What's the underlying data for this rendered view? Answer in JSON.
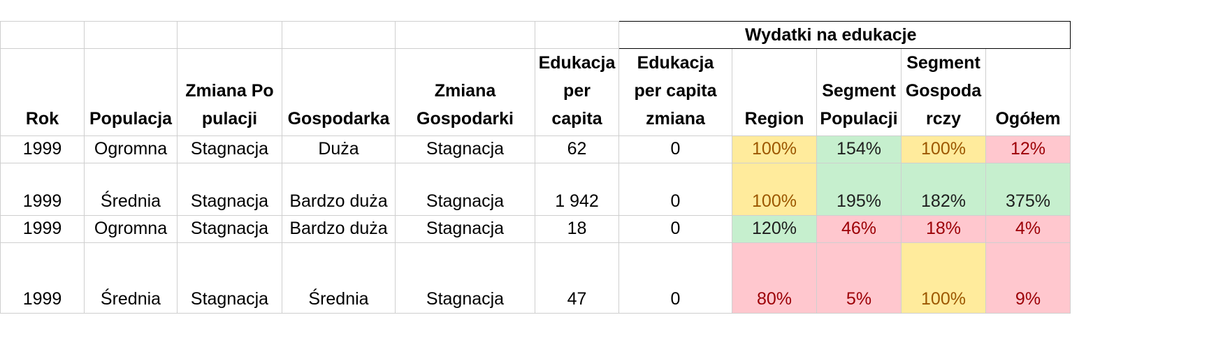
{
  "group_title": "Wydatki na edukacje",
  "headers": {
    "rok": "Rok",
    "populacja": "Populacja",
    "zmiana_populacji": "Zmiana Populacji",
    "gospodarka": "Gospodarka",
    "zmiana_gospodarki": "Zmiana Gospodarki",
    "edukacja_per_capita": "Edukacja per capita",
    "edukacja_per_capita_zmiana": "Edukacja per capita zmiana",
    "region": "Region",
    "segment_populacji": "Segment Populacji",
    "segment_gospodarczy": "Segment Gospodarczy",
    "ogolem": "Ogółem"
  },
  "rows": [
    {
      "rok": "1999",
      "populacja": "Ogromna",
      "zmiana_populacji": "Stagnacja",
      "gospodarka": "Duża",
      "zmiana_gospodarki": "Stagnacja",
      "edukacja": "62",
      "zmiana": "0",
      "region": "100%",
      "seg_pop": "154%",
      "seg_gosp": "100%",
      "ogolem": "12%"
    },
    {
      "rok": "1999",
      "populacja": "Średnia",
      "zmiana_populacji": "Stagnacja",
      "gospodarka": "Bardzo duża",
      "zmiana_gospodarki": "Stagnacja",
      "edukacja": "1 942",
      "zmiana": "0",
      "region": "100%",
      "seg_pop": "195%",
      "seg_gosp": "182%",
      "ogolem": "375%"
    },
    {
      "rok": "1999",
      "populacja": "Ogromna",
      "zmiana_populacji": "Stagnacja",
      "gospodarka": "Bardzo duża",
      "zmiana_gospodarki": "Stagnacja",
      "edukacja": "18",
      "zmiana": "0",
      "region": "120%",
      "seg_pop": "46%",
      "seg_gosp": "18%",
      "ogolem": "4%"
    },
    {
      "rok": "1999",
      "populacja": "Średnia",
      "zmiana_populacji": "Stagnacja",
      "gospodarka": "Średnia",
      "zmiana_gospodarki": "Stagnacja",
      "edukacja": "47",
      "zmiana": "0",
      "region": "80%",
      "seg_pop": "5%",
      "seg_gosp": "100%",
      "ogolem": "9%"
    }
  ],
  "highlight_colors": {
    "yellow_fill": "#ffeb9c",
    "yellow_text": "#9c5700",
    "green_fill": "#c6efce",
    "green_text": "#1f1f1f",
    "red_fill": "#ffc7ce",
    "red_text": "#9c0006"
  }
}
